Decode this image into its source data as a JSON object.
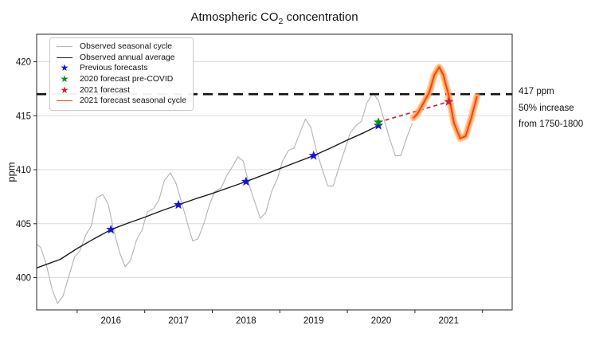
{
  "figure": {
    "title_parts": {
      "prefix": "Atmospheric CO",
      "sub": "2",
      "suffix": " concentration"
    }
  },
  "chart_data": {
    "type": "line",
    "title": "Atmospheric CO2 concentration",
    "xlabel": "",
    "ylabel": "ppm",
    "grid": "horizontal",
    "legend_position": "upper left",
    "x_domain": [
      2015.4,
      2022.44
    ],
    "y_domain": [
      397.01,
      422.55
    ],
    "y_ticks": [
      400,
      405,
      410,
      415,
      420
    ],
    "x_ticks": [
      2016,
      2017,
      2018,
      2019,
      2020,
      2021,
      2022
    ],
    "x_tick_labels": [
      {
        "text": "2016",
        "x": 2016.5
      },
      {
        "text": "2017",
        "x": 2017.5
      },
      {
        "text": "2018",
        "x": 2018.5
      },
      {
        "text": "2019",
        "x": 2019.5
      },
      {
        "text": "2020",
        "x": 2020.5
      },
      {
        "text": "2021",
        "x": 2021.5
      }
    ],
    "threshold": {
      "value": 417,
      "color": "#111111",
      "annotation_lines": [
        "417 ppm",
        "50% increase",
        "from 1750-1800"
      ]
    },
    "series": [
      {
        "name": "Observed seasonal cycle",
        "color": "#b3b3b3",
        "width": 1.1,
        "points": [
          [
            2015.4,
            403.1
          ],
          [
            2015.46,
            402.8
          ],
          [
            2015.54,
            401.3
          ],
          [
            2015.63,
            398.9
          ],
          [
            2015.71,
            397.6
          ],
          [
            2015.79,
            398.3
          ],
          [
            2015.88,
            400.2
          ],
          [
            2015.96,
            401.9
          ],
          [
            2016.04,
            402.5
          ],
          [
            2016.13,
            404.0
          ],
          [
            2016.21,
            404.8
          ],
          [
            2016.29,
            407.4
          ],
          [
            2016.38,
            407.7
          ],
          [
            2016.46,
            406.8
          ],
          [
            2016.54,
            404.4
          ],
          [
            2016.63,
            402.3
          ],
          [
            2016.71,
            401.0
          ],
          [
            2016.79,
            401.6
          ],
          [
            2016.88,
            403.5
          ],
          [
            2016.96,
            404.4
          ],
          [
            2017.04,
            406.1
          ],
          [
            2017.13,
            406.4
          ],
          [
            2017.21,
            407.2
          ],
          [
            2017.29,
            409.0
          ],
          [
            2017.38,
            409.7
          ],
          [
            2017.46,
            408.8
          ],
          [
            2017.54,
            407.1
          ],
          [
            2017.63,
            405.1
          ],
          [
            2017.71,
            403.4
          ],
          [
            2017.79,
            403.6
          ],
          [
            2017.88,
            405.1
          ],
          [
            2017.96,
            406.8
          ],
          [
            2018.04,
            408.0
          ],
          [
            2018.13,
            408.3
          ],
          [
            2018.21,
            409.4
          ],
          [
            2018.29,
            410.2
          ],
          [
            2018.38,
            411.2
          ],
          [
            2018.46,
            410.8
          ],
          [
            2018.54,
            408.7
          ],
          [
            2018.63,
            407.0
          ],
          [
            2018.71,
            405.5
          ],
          [
            2018.79,
            406.0
          ],
          [
            2018.88,
            408.0
          ],
          [
            2018.96,
            409.1
          ],
          [
            2019.04,
            410.8
          ],
          [
            2019.13,
            411.8
          ],
          [
            2019.21,
            412.0
          ],
          [
            2019.29,
            413.3
          ],
          [
            2019.38,
            414.7
          ],
          [
            2019.46,
            413.9
          ],
          [
            2019.54,
            411.8
          ],
          [
            2019.63,
            410.0
          ],
          [
            2019.71,
            408.5
          ],
          [
            2019.79,
            408.5
          ],
          [
            2019.88,
            410.3
          ],
          [
            2019.96,
            411.8
          ],
          [
            2020.04,
            413.4
          ],
          [
            2020.13,
            414.1
          ],
          [
            2020.21,
            414.5
          ],
          [
            2020.29,
            416.2
          ],
          [
            2020.38,
            417.1
          ],
          [
            2020.46,
            416.4
          ],
          [
            2020.54,
            414.7
          ],
          [
            2020.63,
            412.8
          ],
          [
            2020.71,
            411.3
          ],
          [
            2020.79,
            411.3
          ],
          [
            2020.88,
            413.0
          ],
          [
            2020.96,
            414.3
          ]
        ]
      },
      {
        "name": "Observed annual average",
        "color": "#1a1a1a",
        "width": 1.4,
        "points": [
          [
            2015.4,
            400.9
          ],
          [
            2015.75,
            401.7
          ],
          [
            2016.0,
            402.7
          ],
          [
            2016.25,
            403.6
          ],
          [
            2016.5,
            404.45
          ],
          [
            2016.75,
            405.05
          ],
          [
            2017.0,
            405.6
          ],
          [
            2017.25,
            406.2
          ],
          [
            2017.5,
            406.75
          ],
          [
            2017.75,
            407.3
          ],
          [
            2018.0,
            407.8
          ],
          [
            2018.25,
            408.35
          ],
          [
            2018.5,
            408.9
          ],
          [
            2018.75,
            409.5
          ],
          [
            2019.0,
            410.1
          ],
          [
            2019.25,
            410.7
          ],
          [
            2019.5,
            411.3
          ],
          [
            2019.75,
            412.0
          ],
          [
            2020.0,
            412.75
          ],
          [
            2020.25,
            413.45
          ],
          [
            2020.46,
            414.1
          ]
        ]
      },
      {
        "name": "2021 forecast trend",
        "color": "#d02030",
        "width": 1.7,
        "dash": "5 4",
        "points": [
          [
            2020.46,
            414.4
          ],
          [
            2021.5,
            416.3
          ]
        ]
      },
      {
        "name": "2021 forecast seasonal cycle",
        "color": "#e8431a",
        "width": 1.8,
        "band_color": "#ffa050",
        "points": [
          [
            2020.98,
            414.8
          ],
          [
            2021.04,
            415.2
          ],
          [
            2021.13,
            416.2
          ],
          [
            2021.21,
            417.1
          ],
          [
            2021.29,
            418.8
          ],
          [
            2021.36,
            419.5
          ],
          [
            2021.42,
            418.8
          ],
          [
            2021.5,
            416.9
          ],
          [
            2021.58,
            414.3
          ],
          [
            2021.67,
            412.9
          ],
          [
            2021.75,
            413.1
          ],
          [
            2021.83,
            414.7
          ],
          [
            2021.92,
            416.8
          ]
        ]
      }
    ],
    "markers": [
      {
        "name": "Previous forecasts",
        "color": "#1414dc",
        "points": [
          [
            2016.5,
            404.45
          ],
          [
            2017.5,
            406.75
          ],
          [
            2018.5,
            408.9
          ],
          [
            2019.5,
            411.3
          ],
          [
            2020.46,
            414.1
          ]
        ]
      },
      {
        "name": "2020 forecast pre-COVID",
        "color": "#0a8f0f",
        "points": [
          [
            2020.46,
            414.4
          ]
        ]
      },
      {
        "name": "2021 forecast",
        "color": "#d02030",
        "points": [
          [
            2021.5,
            416.3
          ]
        ]
      }
    ],
    "legend": [
      {
        "label": "Observed seasonal cycle",
        "marker": "line",
        "color": "#b3b3b3"
      },
      {
        "label": "Observed annual average",
        "marker": "line",
        "color": "#1a1a1a"
      },
      {
        "label": "Previous forecasts",
        "marker": "star",
        "color": "#1414dc"
      },
      {
        "label": "2020 forecast pre-COVID",
        "marker": "star",
        "color": "#0a8f0f"
      },
      {
        "label": "2021 forecast",
        "marker": "star",
        "color": "#d02030"
      },
      {
        "label": "2021 forecast seasonal cycle",
        "marker": "line",
        "color": "#e8431a"
      }
    ]
  }
}
